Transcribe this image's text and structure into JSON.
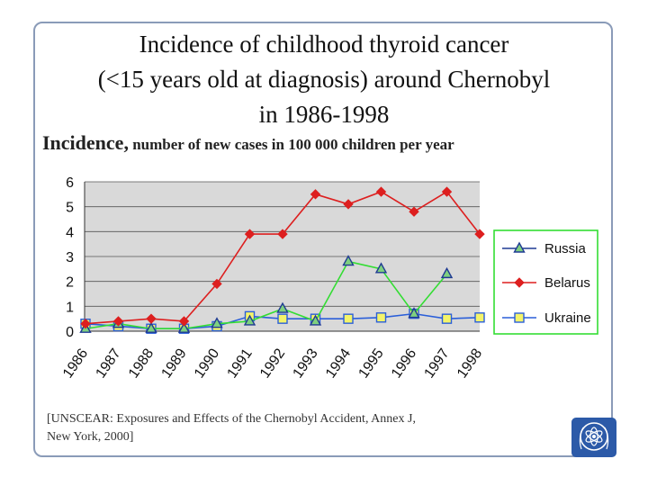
{
  "title_lines": [
    "Incidence of childhood thyroid cancer",
    "(<15 years old at diagnosis) around Chernobyl",
    "in 1986-1998"
  ],
  "subtitle": {
    "main": "Incidence,",
    "rest": " number of new cases in 100 000 children per year"
  },
  "citation": {
    "line1": "[UNSCEAR: Exposures and Effects of the Chernobyl Accident, Annex J,",
    "line2": "New York, 2000]"
  },
  "logo": {
    "icon": "un-atom-emblem-icon"
  },
  "chart_data": {
    "type": "line",
    "title": "Incidence of childhood thyroid cancer (<15 years old at diagnosis) around Chernobyl in 1986-1998",
    "ylabel": "Incidence, number of new cases in 100 000 children per year",
    "xlabel": "",
    "categories": [
      "1986",
      "1987",
      "1988",
      "1989",
      "1990",
      "1991",
      "1992",
      "1993",
      "1994",
      "1995",
      "1996",
      "1997",
      "1998"
    ],
    "ylim": [
      0,
      6
    ],
    "yticks": [
      "0",
      "1",
      "2",
      "3",
      "4",
      "5",
      "6"
    ],
    "grid": true,
    "legend_position": "right",
    "series": [
      {
        "name": "Russia",
        "color": "#1f3a93",
        "marker": "triangle",
        "segment_color": "#33dd33",
        "values": [
          0.1,
          0.3,
          0.1,
          0.1,
          0.3,
          0.4,
          0.9,
          0.4,
          2.8,
          2.5,
          0.7,
          2.3,
          null
        ]
      },
      {
        "name": "Belarus",
        "color": "#dd1f1f",
        "marker": "diamond",
        "values": [
          0.3,
          0.4,
          0.5,
          0.4,
          1.9,
          3.9,
          3.9,
          5.5,
          5.1,
          5.6,
          4.8,
          5.6,
          3.9
        ]
      },
      {
        "name": "Ukraine",
        "color": "#2b5fd9",
        "marker": "square",
        "marker_fill": "#f4f46a",
        "values": [
          0.3,
          0.2,
          0.1,
          0.1,
          0.2,
          0.6,
          0.5,
          0.5,
          0.5,
          0.55,
          0.7,
          0.5,
          0.55
        ]
      }
    ]
  }
}
